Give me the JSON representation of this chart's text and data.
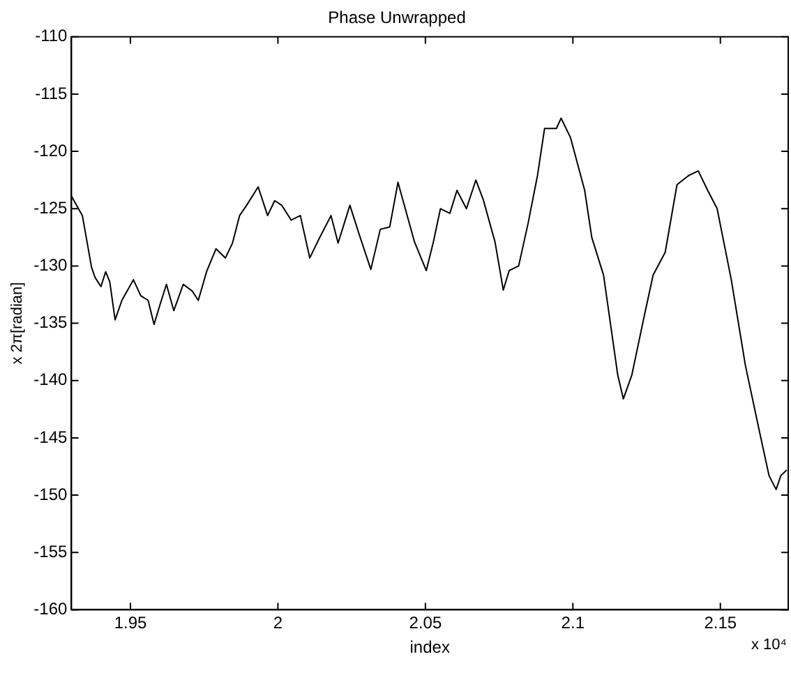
{
  "chart_data": {
    "type": "line",
    "title": "Phase Unwrapped",
    "xlabel": "index",
    "ylabel": "x 2π[radian]",
    "annotations": [
      "x 10⁴"
    ],
    "xlim": [
      1.93,
      2.173
    ],
    "xticks": [
      1.95,
      2,
      2.05,
      2.1,
      2.15
    ],
    "ylim": [
      -160,
      -110
    ],
    "yticks": [
      -160,
      -155,
      -150,
      -145,
      -140,
      -135,
      -130,
      -125,
      -120,
      -115,
      -110
    ],
    "grid": false,
    "legend": false,
    "marker": "none",
    "line_style": "solid",
    "series": [
      {
        "color": "#000000",
        "x": [
          1.93,
          1.9337,
          1.9368,
          1.938,
          1.94,
          1.9416,
          1.943,
          1.9448,
          1.9471,
          1.951,
          1.9535,
          1.956,
          1.958,
          1.96,
          1.9622,
          1.9647,
          1.9679,
          1.971,
          1.973,
          1.9758,
          1.979,
          1.9822,
          1.9846,
          1.987,
          1.9894,
          1.9933,
          1.9965,
          1.9989,
          2.0013,
          2.0045,
          2.0076,
          2.0108,
          2.014,
          2.018,
          2.0204,
          2.0244,
          2.0275,
          2.0315,
          2.0347,
          2.0379,
          2.0407,
          2.0463,
          2.0503,
          2.0527,
          2.0551,
          2.0583,
          2.0607,
          2.0639,
          2.0671,
          2.0696,
          2.0736,
          2.0764,
          2.0784,
          2.0816,
          2.0848,
          2.088,
          2.0904,
          2.0944,
          2.096,
          2.0992,
          2.104,
          2.1064,
          2.1104,
          2.1136,
          2.1152,
          2.1171,
          2.12,
          2.124,
          2.1272,
          2.1313,
          2.1353,
          2.1393,
          2.1425,
          2.1457,
          2.1489,
          2.1537,
          2.1585,
          2.1633,
          2.1665,
          2.1689,
          2.1705,
          2.1725
        ],
        "values": [
          -123.9,
          -125.6,
          -130.1,
          -131,
          -131.8,
          -130.5,
          -131.4,
          -134.7,
          -133,
          -131.2,
          -132.6,
          -133,
          -135.1,
          -133.4,
          -131.6,
          -133.9,
          -131.6,
          -132.2,
          -133,
          -130.5,
          -128.5,
          -129.3,
          -128,
          -125.6,
          -124.7,
          -123.1,
          -125.6,
          -124.3,
          -124.7,
          -126,
          -125.6,
          -129.3,
          -127.6,
          -125.6,
          -128,
          -124.7,
          -127.2,
          -130.3,
          -126.8,
          -126.6,
          -122.7,
          -127.9,
          -130.4,
          -127.9,
          -125,
          -125.4,
          -123.4,
          -125,
          -122.5,
          -124.2,
          -127.9,
          -132.1,
          -130.4,
          -130,
          -126.3,
          -122.1,
          -118,
          -118,
          -117.1,
          -118.8,
          -123.4,
          -127.5,
          -130.8,
          -136.6,
          -139.5,
          -141.6,
          -139.5,
          -134.6,
          -130.8,
          -128.8,
          -122.9,
          -122.1,
          -121.7,
          -123.4,
          -125,
          -131.2,
          -138.7,
          -144.5,
          -148.3,
          -149.5,
          -148.3,
          -147.8
        ]
      }
    ]
  }
}
